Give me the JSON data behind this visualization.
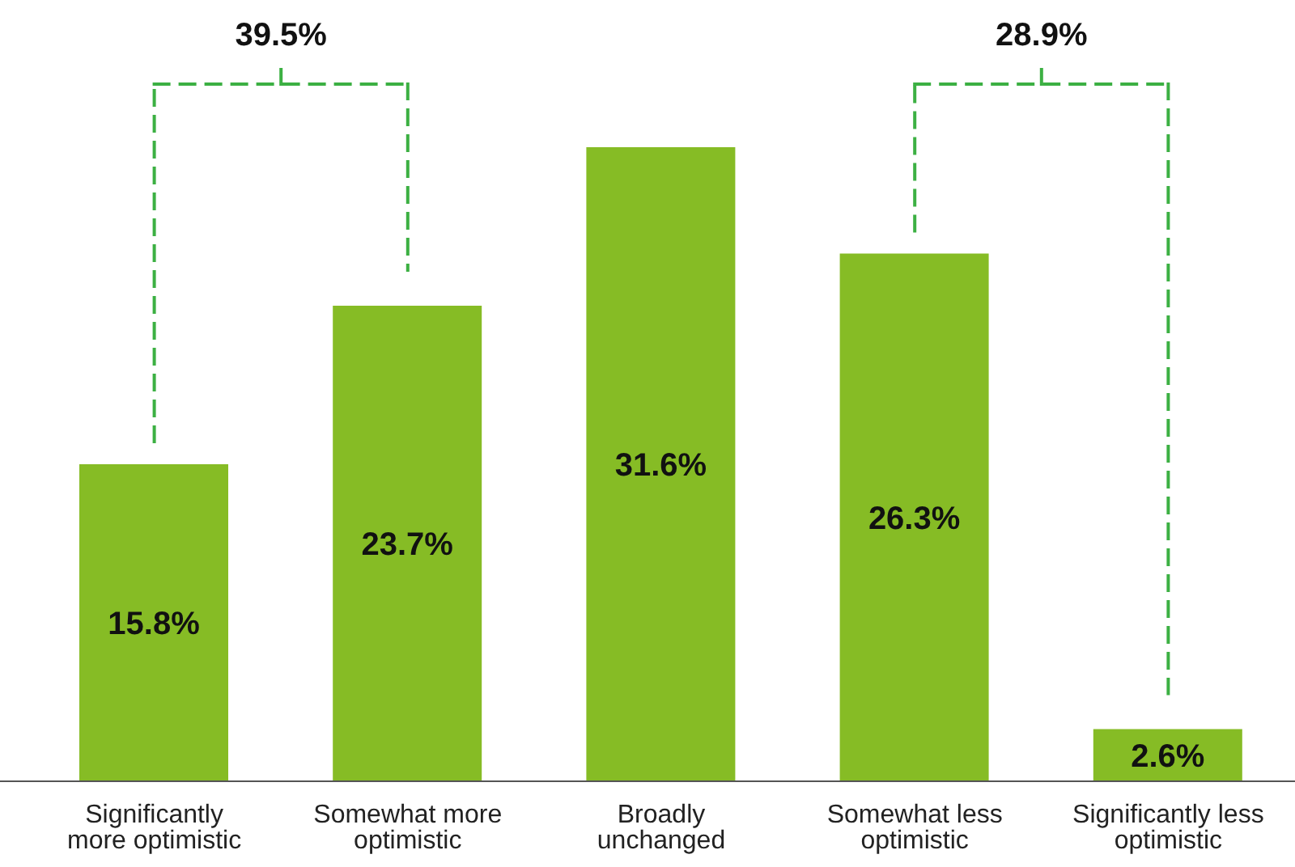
{
  "chart_data": {
    "type": "bar",
    "categories": [
      "Significantly more optimistic",
      "Somewhat more optimistic",
      "Broadly unchanged",
      "Somewhat less optimistic",
      "Significantly less optimistic"
    ],
    "values": [
      15.8,
      23.7,
      31.6,
      26.3,
      2.6
    ],
    "value_labels": [
      "15.8%",
      "23.7%",
      "31.6%",
      "26.3%",
      "2.6%"
    ],
    "color": "#86bc25",
    "annotations": [
      "39.5%",
      "28.9%"
    ]
  }
}
